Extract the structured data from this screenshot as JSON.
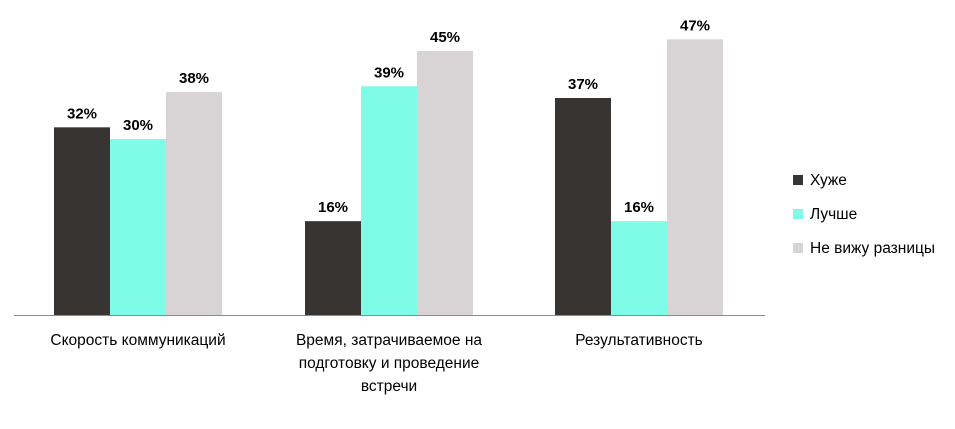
{
  "chart_data": {
    "type": "bar",
    "categories": [
      [
        "Скорость коммуникаций"
      ],
      [
        "Время, затрачиваемое на",
        "подготовку и проведение",
        "встречи"
      ],
      [
        "Результативность"
      ]
    ],
    "series": [
      {
        "name": "Хуже",
        "color": "#383432",
        "values": [
          32,
          16,
          37
        ]
      },
      {
        "name": "Лучше",
        "color": "#7ffce8",
        "values": [
          30,
          39,
          16
        ]
      },
      {
        "name": "Не вижу разницы",
        "color": "#d8d3d5",
        "values": [
          38,
          45,
          47
        ]
      }
    ],
    "value_suffix": "%",
    "ylim": [
      0,
      52
    ],
    "grid": false,
    "legend_position": "right"
  }
}
